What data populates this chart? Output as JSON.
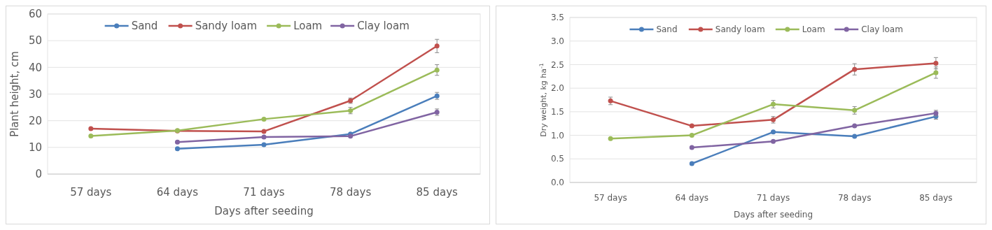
{
  "chart_data": [
    {
      "type": "line",
      "xlabel": "Days after seeding",
      "ylabel": "Plant height, cm",
      "categories": [
        "57 days",
        "64 days",
        "71 days",
        "78 days",
        "85 days"
      ],
      "ylim": [
        0,
        60
      ],
      "yticks": [
        0,
        10,
        20,
        30,
        40,
        50,
        60
      ],
      "grid": "y",
      "legend": "top",
      "marker": "circle",
      "line_style": "solid",
      "series": [
        {
          "name": "Sand",
          "color": "#4a7ebb",
          "values": [
            null,
            9.5,
            11,
            15,
            29.3
          ],
          "errors": [
            null,
            null,
            null,
            null,
            1.3
          ]
        },
        {
          "name": "Sandy loam",
          "color": "#c0504d",
          "values": [
            17,
            16.2,
            16,
            27.5,
            48
          ],
          "errors": [
            null,
            null,
            null,
            1,
            2.5
          ]
        },
        {
          "name": "Loam",
          "color": "#9bbb59",
          "values": [
            14.3,
            16.3,
            20.6,
            23.8,
            39
          ],
          "errors": [
            null,
            null,
            null,
            1.2,
            2
          ]
        },
        {
          "name": "Clay loam",
          "color": "#8064a2",
          "values": [
            null,
            12,
            13.9,
            14.2,
            23.2
          ],
          "errors": [
            null,
            null,
            null,
            null,
            1.2
          ]
        }
      ]
    },
    {
      "type": "line",
      "xlabel": "Days after seeding",
      "ylabel": "Dry weight,  kg ha$^{-1}$",
      "categories": [
        "57 days",
        "64 days",
        "71 days",
        "78 days",
        "85 days"
      ],
      "ylim": [
        0,
        3.5
      ],
      "yticks": [
        {
          "value": 0,
          "label": "0.0"
        },
        {
          "value": 0.5,
          "label": "0.5"
        },
        {
          "value": 1,
          "label": "1.0"
        },
        {
          "value": 1.5,
          "label": "1.5"
        },
        {
          "value": 2,
          "label": "2.0"
        },
        {
          "value": 2.5,
          "label": "2.5"
        },
        {
          "value": 3,
          "label": "3.0"
        },
        {
          "value": 3.5,
          "label": "3.5"
        }
      ],
      "grid": "y",
      "legend": "top",
      "marker": "circle",
      "line_style": "solid",
      "series": [
        {
          "name": "Sand",
          "color": "#4a7ebb",
          "values": [
            null,
            0.4,
            1.07,
            0.98,
            1.4
          ],
          "errors": [
            null,
            null,
            null,
            null,
            0.06
          ]
        },
        {
          "name": "Sandy loam",
          "color": "#c0504d",
          "values": [
            1.73,
            1.2,
            1.33,
            2.4,
            2.53
          ],
          "errors": [
            0.08,
            null,
            0.07,
            0.12,
            0.12
          ]
        },
        {
          "name": "Loam",
          "color": "#9bbb59",
          "values": [
            0.93,
            1,
            1.66,
            1.53,
            2.33
          ],
          "errors": [
            null,
            null,
            0.08,
            0.08,
            0.12
          ]
        },
        {
          "name": "Clay loam",
          "color": "#8064a2",
          "values": [
            null,
            0.74,
            0.87,
            1.2,
            1.47
          ],
          "errors": [
            null,
            null,
            null,
            null,
            0.06
          ]
        }
      ]
    }
  ]
}
